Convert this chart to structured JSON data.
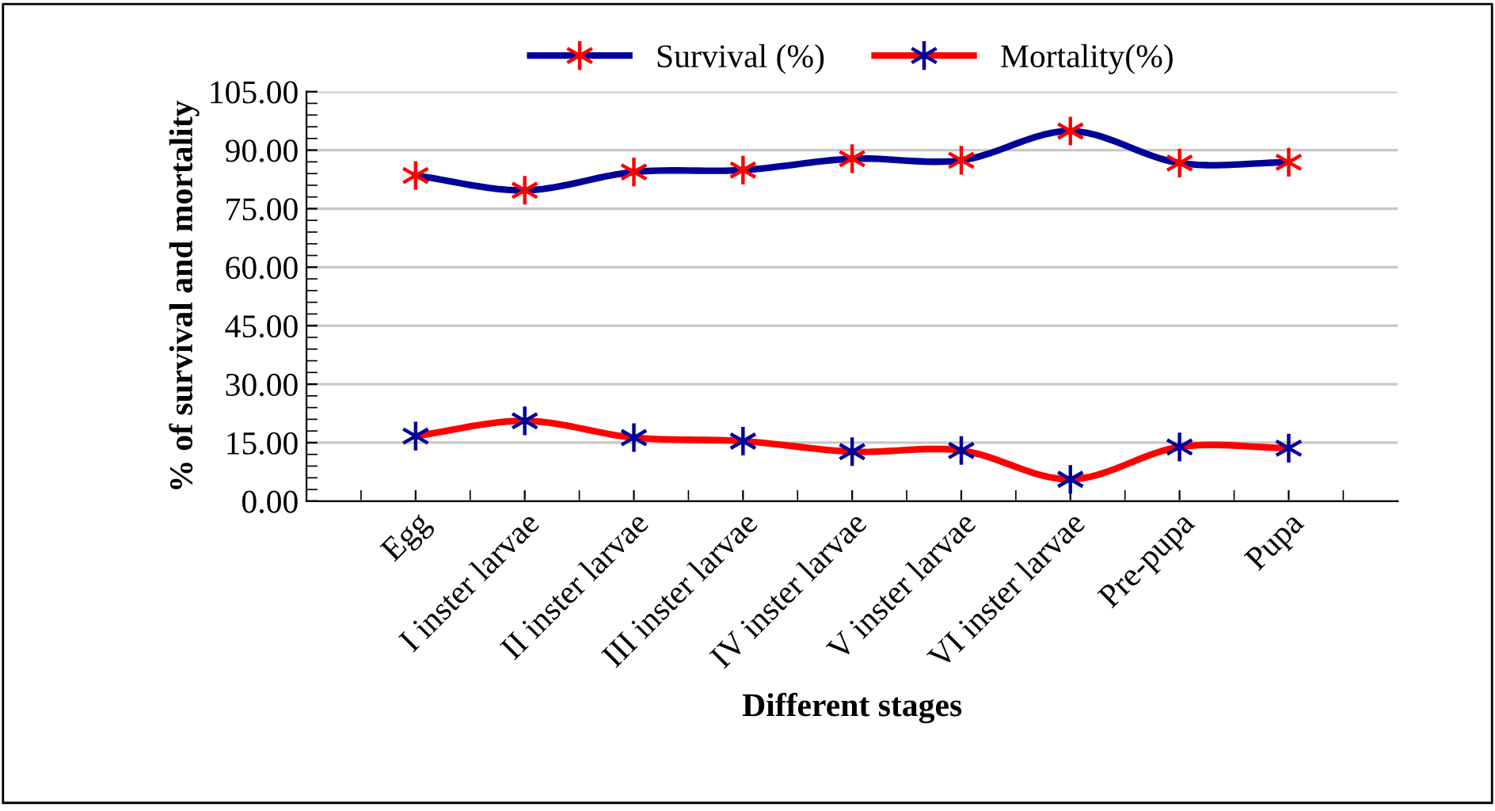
{
  "chart_data": {
    "type": "line",
    "xlabel": "Different stages",
    "ylabel": "% of survival and mortality",
    "categories": [
      "Egg",
      "I inster larvae",
      "II inster larvae",
      "III inster larvae",
      "IV inster larvae",
      "V inster larvae",
      "VI inster larvae",
      "Pre-pupa",
      "Pupa"
    ],
    "series": [
      {
        "name": "Survival (%)",
        "color": "#000099",
        "values": [
          83.5,
          79.7,
          84.4,
          84.9,
          87.8,
          87.4,
          94.9,
          86.7,
          86.9
        ]
      },
      {
        "name": "Mortality(%)",
        "color": "#ff0000",
        "values": [
          16.7,
          20.6,
          16.3,
          15.4,
          12.7,
          13.0,
          5.6,
          13.9,
          13.6
        ]
      }
    ],
    "ylim": [
      0,
      105
    ],
    "yticks": [
      {
        "value": 0,
        "label": "0.00"
      },
      {
        "value": 15,
        "label": "15.00"
      },
      {
        "value": 30,
        "label": "30.00"
      },
      {
        "value": 45,
        "label": "45.00"
      },
      {
        "value": 60,
        "label": "60.00"
      },
      {
        "value": 75,
        "label": "75.00"
      },
      {
        "value": 90,
        "label": "90.00"
      },
      {
        "value": 105,
        "label": "105.00"
      }
    ],
    "grid": "y",
    "legend": "top",
    "marker": "cross",
    "line_style": "solid"
  }
}
